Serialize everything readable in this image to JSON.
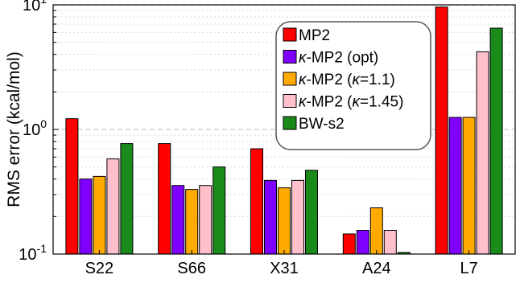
{
  "chart_data": {
    "type": "bar",
    "title": "",
    "xlabel": "",
    "ylabel": "RMS error (kcal/mol)",
    "yscale": "log",
    "ylim": [
      0.1,
      10
    ],
    "grid": "horizontal dashed (major and minor)",
    "legend_position": "top-right",
    "categories": [
      "S22",
      "S66",
      "X31",
      "A24",
      "L7"
    ],
    "yticks": [
      {
        "value": 0.1,
        "base": "10",
        "exp": "-1"
      },
      {
        "value": 1,
        "base": "10",
        "exp": "0"
      },
      {
        "value": 10,
        "base": "10",
        "exp": "1"
      }
    ],
    "series": [
      {
        "name": "MP2",
        "color": "#ff0000",
        "values": [
          1.22,
          0.77,
          0.7,
          0.145,
          9.6
        ]
      },
      {
        "name": "κ-MP2 (opt)",
        "color": "#8000ff",
        "values": [
          0.4,
          0.355,
          0.39,
          0.155,
          1.25
        ]
      },
      {
        "name": "κ-MP2 (κ=1.1)",
        "color": "#ffaa00",
        "values": [
          0.42,
          0.33,
          0.34,
          0.235,
          1.25
        ]
      },
      {
        "name": "κ-MP2 (κ=1.45)",
        "color": "#ffc0cb",
        "values": [
          0.58,
          0.355,
          0.39,
          0.155,
          4.2
        ]
      },
      {
        "name": "BW-s2",
        "color": "#1a8a1a",
        "values": [
          0.77,
          0.5,
          0.47,
          0.103,
          6.5
        ]
      }
    ]
  }
}
